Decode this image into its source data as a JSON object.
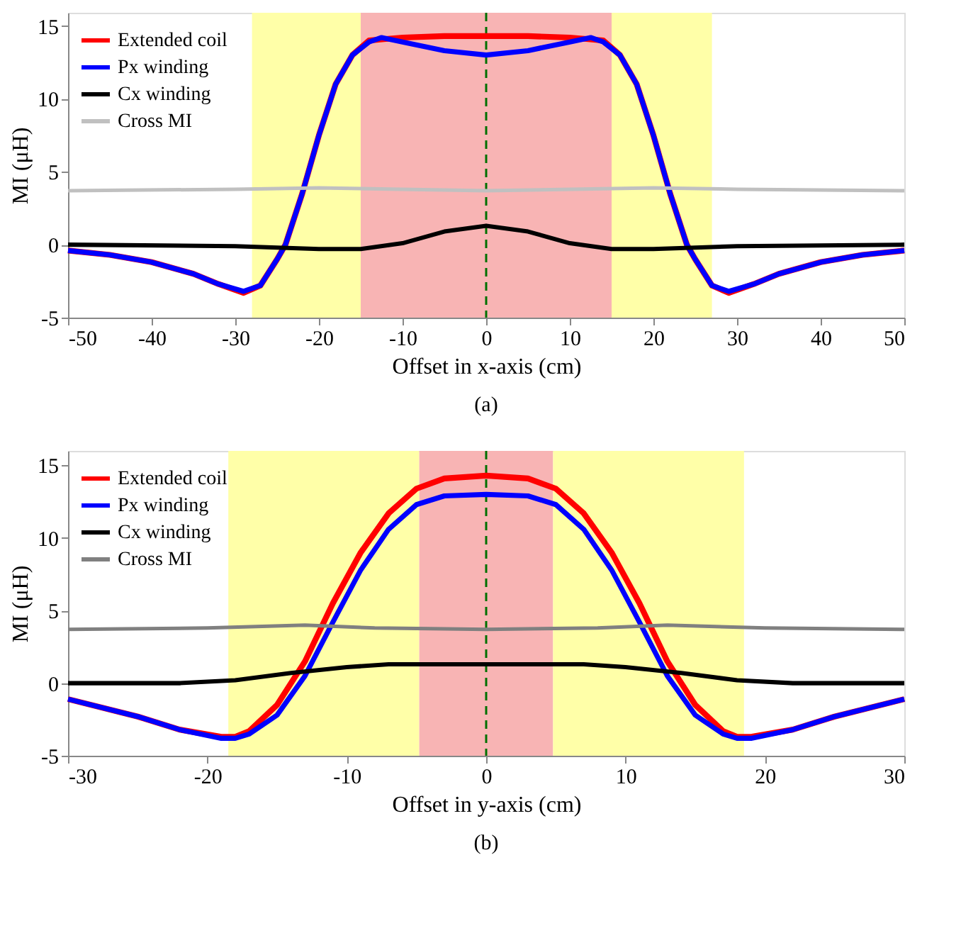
{
  "chart_data": [
    {
      "type": "line",
      "xlabel": "Offset in x-axis (cm)",
      "ylabel": "MI (μH)",
      "xlim": [
        -50,
        50
      ],
      "xticks": [
        -50,
        -40,
        -30,
        -20,
        -10,
        0,
        10,
        20,
        30,
        40,
        50
      ],
      "ylim": [
        -5,
        15.9
      ],
      "yticks": [
        -5,
        0,
        5,
        10,
        15
      ],
      "grid": false,
      "legend": "top left",
      "marker": "none",
      "line_style": "solid",
      "annotations": [
        "(a)"
      ],
      "series": [
        {
          "name": "Extended coil",
          "color": "#ff0000",
          "x": [
            -50,
            -45,
            -40,
            -35,
            -32,
            -29,
            -27,
            -25,
            -24,
            -22,
            -20,
            -18,
            -16,
            -14,
            -12,
            -10,
            -5,
            0,
            5,
            10,
            12,
            14,
            16,
            18,
            20,
            22,
            24,
            25,
            27,
            29,
            32,
            35,
            40,
            45,
            50
          ],
          "values": [
            -0.4,
            -0.7,
            -1.2,
            -2.0,
            -2.7,
            -3.3,
            -2.8,
            -1.0,
            0,
            3.5,
            7.5,
            11.0,
            13.0,
            14.0,
            14.1,
            14.2,
            14.3,
            14.3,
            14.3,
            14.2,
            14.1,
            14.0,
            13.0,
            11.0,
            7.5,
            3.5,
            0,
            -1.0,
            -2.8,
            -3.3,
            -2.7,
            -2.0,
            -1.2,
            -0.7,
            -0.4
          ]
        },
        {
          "name": "Px winding",
          "color": "#0000ff",
          "x": [
            -50,
            -45,
            -40,
            -35,
            -32,
            -29,
            -27,
            -25,
            -24,
            -22,
            -20,
            -18,
            -16,
            -14,
            -12.5,
            -10,
            -5,
            0,
            5,
            10,
            12.5,
            14,
            16,
            18,
            20,
            22,
            24,
            25,
            27,
            29,
            32,
            35,
            40,
            45,
            50
          ],
          "values": [
            -0.4,
            -0.7,
            -1.2,
            -2.0,
            -2.7,
            -3.2,
            -2.8,
            -1.0,
            0,
            3.5,
            7.5,
            11.0,
            13.0,
            13.9,
            14.2,
            13.9,
            13.3,
            13.0,
            13.3,
            13.9,
            14.2,
            13.9,
            13.0,
            11.0,
            7.5,
            3.5,
            0,
            -1.0,
            -2.8,
            -3.2,
            -2.7,
            -2.0,
            -1.2,
            -0.7,
            -0.4
          ]
        },
        {
          "name": "Cx winding",
          "color": "#000000",
          "x": [
            -50,
            -30,
            -20,
            -15,
            -10,
            -5,
            0,
            5,
            10,
            15,
            20,
            30,
            50
          ],
          "values": [
            0,
            -0.1,
            -0.3,
            -0.3,
            0.1,
            0.9,
            1.3,
            0.9,
            0.1,
            -0.3,
            -0.3,
            -0.1,
            0
          ]
        },
        {
          "name": "Cross MI",
          "color": "#c0c0c0",
          "x": [
            -50,
            -30,
            -20,
            0,
            20,
            30,
            50
          ],
          "values": [
            3.7,
            3.8,
            3.9,
            3.7,
            3.9,
            3.8,
            3.7
          ]
        }
      ],
      "bands": [
        {
          "axis": "x",
          "from": -28,
          "to": -15,
          "color": "#ffffa8"
        },
        {
          "axis": "x",
          "from": -15,
          "to": 15,
          "color": "#f8b4b4"
        },
        {
          "axis": "x",
          "from": 15,
          "to": 27,
          "color": "#ffffa8"
        }
      ],
      "ref_lines": [
        {
          "axis": "x",
          "value": 0,
          "color": "#007000",
          "line_style": "dashed"
        }
      ]
    },
    {
      "type": "line",
      "xlabel": "Offset in y-axis (cm)",
      "ylabel": "MI (μH)",
      "xlim": [
        -30,
        30
      ],
      "xticks": [
        -30,
        -20,
        -10,
        0,
        10,
        20,
        30
      ],
      "ylim": [
        -5,
        16
      ],
      "yticks": [
        -5,
        0,
        5,
        10,
        15
      ],
      "grid": false,
      "legend": "top left",
      "marker": "none",
      "line_style": "solid",
      "annotations": [
        "(b)"
      ],
      "series": [
        {
          "name": "Extended coil",
          "color": "#ff0000",
          "x": [
            -30,
            -25,
            -22,
            -19,
            -18,
            -17,
            -15,
            -13,
            -11,
            -9,
            -7,
            -5,
            -3,
            0,
            3,
            5,
            7,
            9,
            11,
            13,
            15,
            17,
            18,
            19,
            22,
            25,
            30
          ],
          "values": [
            -1.1,
            -2.3,
            -3.2,
            -3.7,
            -3.7,
            -3.3,
            -1.5,
            1.5,
            5.5,
            9.0,
            11.7,
            13.4,
            14.1,
            14.3,
            14.1,
            13.4,
            11.7,
            9.0,
            5.5,
            1.5,
            -1.5,
            -3.3,
            -3.7,
            -3.7,
            -3.2,
            -2.3,
            -1.1
          ]
        },
        {
          "name": "Px winding",
          "color": "#0000ff",
          "x": [
            -30,
            -25,
            -22,
            -19,
            -18,
            -17,
            -15,
            -13,
            -11,
            -9,
            -7,
            -5,
            -3,
            0,
            3,
            5,
            7,
            9,
            11,
            13,
            15,
            17,
            18,
            19,
            22,
            25,
            30
          ],
          "values": [
            -1.1,
            -2.3,
            -3.2,
            -3.8,
            -3.8,
            -3.5,
            -2.2,
            0.5,
            4.2,
            7.8,
            10.6,
            12.3,
            12.9,
            13.0,
            12.9,
            12.3,
            10.6,
            7.8,
            4.2,
            0.5,
            -2.2,
            -3.5,
            -3.8,
            -3.8,
            -3.2,
            -2.3,
            -1.1
          ]
        },
        {
          "name": "Cx winding",
          "color": "#000000",
          "x": [
            -30,
            -22,
            -18,
            -14,
            -10,
            -7,
            0,
            7,
            10,
            14,
            18,
            22,
            30
          ],
          "values": [
            0,
            0,
            0.2,
            0.7,
            1.1,
            1.3,
            1.3,
            1.3,
            1.1,
            0.7,
            0.2,
            0,
            0
          ]
        },
        {
          "name": "Cross MI",
          "color": "#808080",
          "x": [
            -30,
            -20,
            -13,
            -8,
            0,
            8,
            13,
            20,
            30
          ],
          "values": [
            3.7,
            3.8,
            4.0,
            3.8,
            3.7,
            3.8,
            4.0,
            3.8,
            3.7
          ]
        }
      ],
      "bands": [
        {
          "axis": "x",
          "from": -18.5,
          "to": -4.8,
          "color": "#ffffa8"
        },
        {
          "axis": "x",
          "from": -4.8,
          "to": 4.8,
          "color": "#f8b4b4"
        },
        {
          "axis": "x",
          "from": 4.8,
          "to": 18.5,
          "color": "#ffffa8"
        }
      ],
      "ref_lines": [
        {
          "axis": "x",
          "value": 0,
          "color": "#007000",
          "line_style": "dashed"
        }
      ]
    }
  ]
}
